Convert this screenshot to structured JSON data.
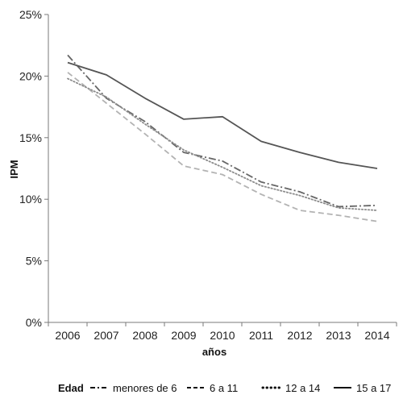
{
  "chart_data": {
    "type": "line",
    "title": "",
    "xlabel": "años",
    "ylabel": "IPM",
    "categories": [
      "2006",
      "2007",
      "2008",
      "2009",
      "2010",
      "2011",
      "2012",
      "2013",
      "2014"
    ],
    "ylim": [
      0,
      25
    ],
    "yticks": [
      "0%",
      "5%",
      "10%",
      "15%",
      "20%",
      "25%"
    ],
    "grid": false,
    "legend_position": "bottom",
    "legend_title": "Edad",
    "series": [
      {
        "name": "menores de 6",
        "values": [
          21.7,
          18.2,
          16.3,
          13.8,
          13.1,
          11.4,
          10.6,
          9.4,
          9.5
        ],
        "style": "dash-dot",
        "color": "#666666"
      },
      {
        "name": "6 a 11",
        "values": [
          20.3,
          17.8,
          15.3,
          12.7,
          12.0,
          10.4,
          9.1,
          8.7,
          8.2
        ],
        "style": "dashed",
        "color": "#b3b3b3"
      },
      {
        "name": "12 a 14",
        "values": [
          19.8,
          18.3,
          16.1,
          14.0,
          12.6,
          11.1,
          10.3,
          9.3,
          9.1
        ],
        "style": "dotted",
        "color": "#8c8c8c"
      },
      {
        "name": "15 a 17",
        "values": [
          21.1,
          20.1,
          18.2,
          16.5,
          16.7,
          14.7,
          13.8,
          13.0,
          12.5
        ],
        "style": "solid",
        "color": "#555555"
      }
    ]
  }
}
